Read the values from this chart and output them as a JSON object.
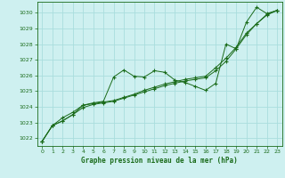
{
  "title": "Graphe pression niveau de la mer (hPa)",
  "bg_color": "#cef0f0",
  "grid_color": "#aadddd",
  "line_color": "#1a6b1a",
  "xlim": [
    -0.5,
    23.5
  ],
  "ylim": [
    1021.5,
    1030.7
  ],
  "yticks": [
    1022,
    1023,
    1024,
    1025,
    1026,
    1027,
    1028,
    1029,
    1030
  ],
  "xticks": [
    0,
    1,
    2,
    3,
    4,
    5,
    6,
    7,
    8,
    9,
    10,
    11,
    12,
    13,
    14,
    15,
    16,
    17,
    18,
    19,
    20,
    21,
    22,
    23
  ],
  "series1_x": [
    0,
    1,
    2,
    3,
    4,
    5,
    6,
    7,
    8,
    9,
    10,
    11,
    12,
    13,
    14,
    15,
    16,
    17,
    18,
    19,
    20,
    21,
    22,
    23
  ],
  "series1_y": [
    1021.8,
    1022.8,
    1023.1,
    1023.5,
    1024.1,
    1024.25,
    1024.35,
    1025.9,
    1026.35,
    1025.95,
    1025.9,
    1026.3,
    1026.2,
    1025.7,
    1025.55,
    1025.3,
    1025.05,
    1025.5,
    1028.0,
    1027.7,
    1029.4,
    1030.35,
    1029.95,
    1030.15
  ],
  "series2_x": [
    0,
    1,
    2,
    3,
    4,
    5,
    6,
    7,
    8,
    9,
    10,
    11,
    12,
    13,
    14,
    15,
    16,
    17,
    18,
    19,
    20,
    21,
    22,
    23
  ],
  "series2_y": [
    1021.8,
    1022.8,
    1023.3,
    1023.65,
    1024.1,
    1024.2,
    1024.3,
    1024.4,
    1024.6,
    1024.8,
    1025.05,
    1025.25,
    1025.45,
    1025.6,
    1025.75,
    1025.85,
    1025.95,
    1026.5,
    1027.1,
    1027.8,
    1028.7,
    1029.3,
    1029.85,
    1030.15
  ],
  "series3_x": [
    0,
    1,
    2,
    3,
    4,
    5,
    6,
    7,
    8,
    9,
    10,
    11,
    12,
    13,
    14,
    15,
    16,
    17,
    18,
    19,
    20,
    21,
    22,
    23
  ],
  "series3_y": [
    1021.8,
    1022.8,
    1023.1,
    1023.5,
    1023.95,
    1024.15,
    1024.25,
    1024.35,
    1024.55,
    1024.75,
    1024.95,
    1025.15,
    1025.35,
    1025.5,
    1025.65,
    1025.75,
    1025.85,
    1026.3,
    1026.9,
    1027.7,
    1028.6,
    1029.3,
    1029.9,
    1030.15
  ]
}
